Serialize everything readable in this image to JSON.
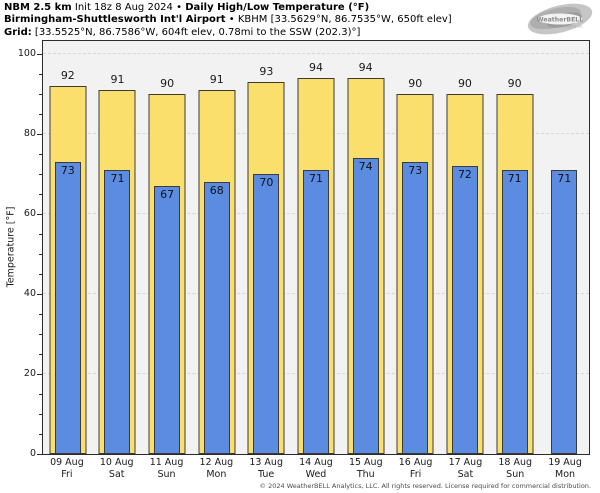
{
  "header": {
    "line1": {
      "model": "NBM 2.5 km",
      "init": "Init 18z 8 Aug 2024",
      "sep": "•",
      "product": "Daily High/Low Temperature (°F)"
    },
    "line2": {
      "station": "Birmingham-Shuttlesworth Int'l Airport",
      "sep": "•",
      "meta": "KBHM [33.5629°N, 86.7535°W, 650ft elev]"
    },
    "line3": {
      "label": "Grid:",
      "meta": "[33.5525°N, 86.7586°W, 604ft elev, 0.78mi to the SSW (202.3)°]"
    }
  },
  "logo": {
    "name": "WeatherBELL",
    "sub": "Analytics LLC"
  },
  "chart_data": {
    "type": "bar",
    "title": "Daily High/Low Temperature (°F)",
    "xlabel": "",
    "ylabel": "Temperature [°F]",
    "ylim": [
      0,
      103
    ],
    "yticks": [
      0,
      20,
      40,
      60,
      80,
      100
    ],
    "yminor_step": 5,
    "grid": "horizontal-dashed",
    "legend": "none",
    "categories": [
      {
        "date": "09 Aug",
        "day": "Fri"
      },
      {
        "date": "10 Aug",
        "day": "Sat"
      },
      {
        "date": "11 Aug",
        "day": "Sun"
      },
      {
        "date": "12 Aug",
        "day": "Mon"
      },
      {
        "date": "13 Aug",
        "day": "Tue"
      },
      {
        "date": "14 Aug",
        "day": "Wed"
      },
      {
        "date": "15 Aug",
        "day": "Thu"
      },
      {
        "date": "16 Aug",
        "day": "Fri"
      },
      {
        "date": "17 Aug",
        "day": "Sat"
      },
      {
        "date": "18 Aug",
        "day": "Sun"
      },
      {
        "date": "19 Aug",
        "day": "Mon"
      }
    ],
    "series": [
      {
        "name": "Daily High",
        "color": "#fbdf6d",
        "border": "#3b3b3b",
        "values": [
          92,
          91,
          90,
          91,
          93,
          94,
          94,
          90,
          90,
          90,
          null
        ]
      },
      {
        "name": "Daily Low",
        "color": "#5b8ce2",
        "border": "#3b3b3b",
        "values": [
          73,
          71,
          67,
          68,
          70,
          71,
          74,
          73,
          72,
          71,
          71
        ]
      }
    ],
    "colors": {
      "plot_bg": "#f2f2f2",
      "gridline": "#d7d7d7",
      "axis": "#2b2b2b"
    }
  },
  "footer": {
    "copyright": "© 2024 WeatherBELL Analytics, LLC. All rights reserved. License required for commercial distribution."
  }
}
